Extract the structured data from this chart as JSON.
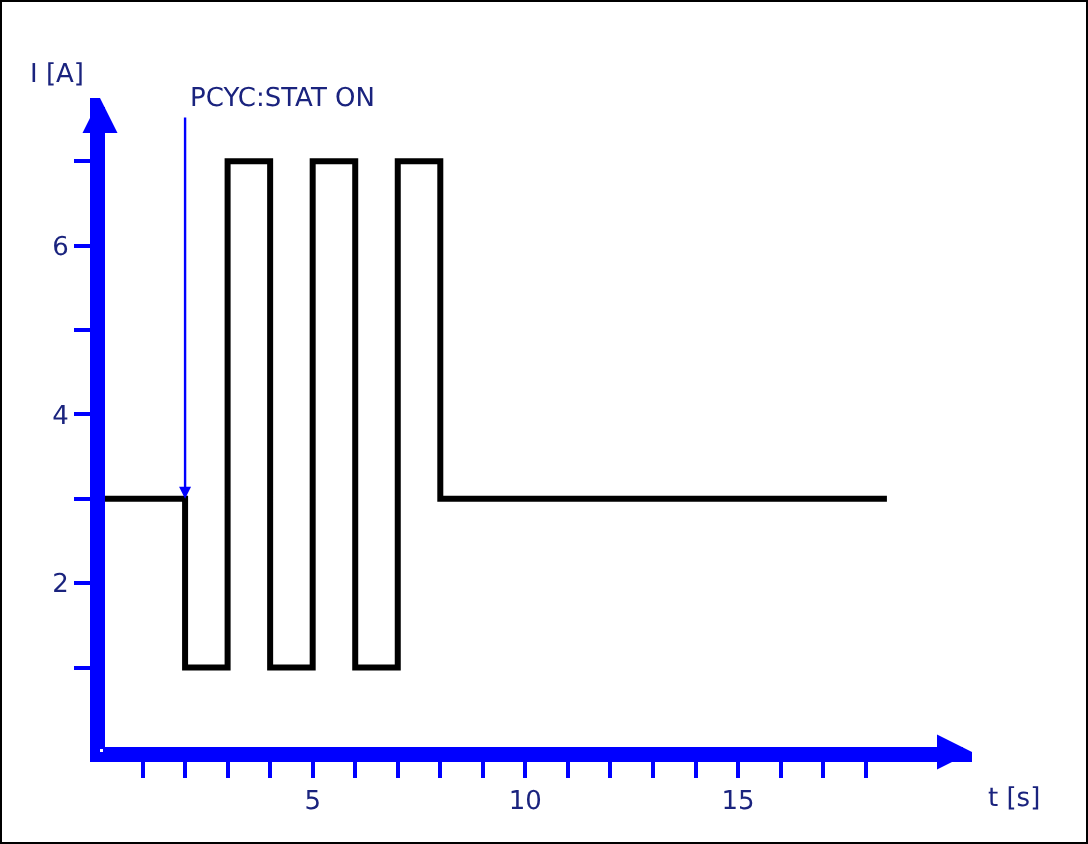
{
  "chart_data": {
    "type": "step",
    "xlabel": "t [s]",
    "ylabel": "I [A]",
    "x": [
      0,
      2,
      3,
      4,
      5,
      6,
      7,
      8,
      18.5
    ],
    "series": [
      {
        "color": "#000000",
        "values": [
          3,
          1,
          7,
          1,
          7,
          1,
          7,
          3,
          3
        ]
      }
    ],
    "xlim": [
      0,
      20.5
    ],
    "ylim": [
      0,
      7.75
    ],
    "xticks": [
      {
        "value": 1,
        "label": null
      },
      {
        "value": 2,
        "label": null
      },
      {
        "value": 3,
        "label": null
      },
      {
        "value": 4,
        "label": null
      },
      5,
      {
        "value": 6,
        "label": null
      },
      {
        "value": 7,
        "label": null
      },
      {
        "value": 8,
        "label": null
      },
      {
        "value": 9,
        "label": null
      },
      10,
      {
        "value": 11,
        "label": null
      },
      {
        "value": 12,
        "label": null
      },
      {
        "value": 13,
        "label": null
      },
      {
        "value": 14,
        "label": null
      },
      15,
      {
        "value": 16,
        "label": null
      },
      {
        "value": 17,
        "label": null
      },
      {
        "value": 18,
        "label": null
      }
    ],
    "yticks": [
      {
        "value": 1,
        "label": null
      },
      2,
      {
        "value": 3,
        "label": null
      },
      4,
      {
        "value": 5,
        "label": null
      },
      6,
      {
        "value": 7,
        "label": null
      }
    ],
    "annotations": [
      {
        "text": "PCYC:STAT ON",
        "x": 2,
        "y": 3
      }
    ],
    "grid": false
  }
}
